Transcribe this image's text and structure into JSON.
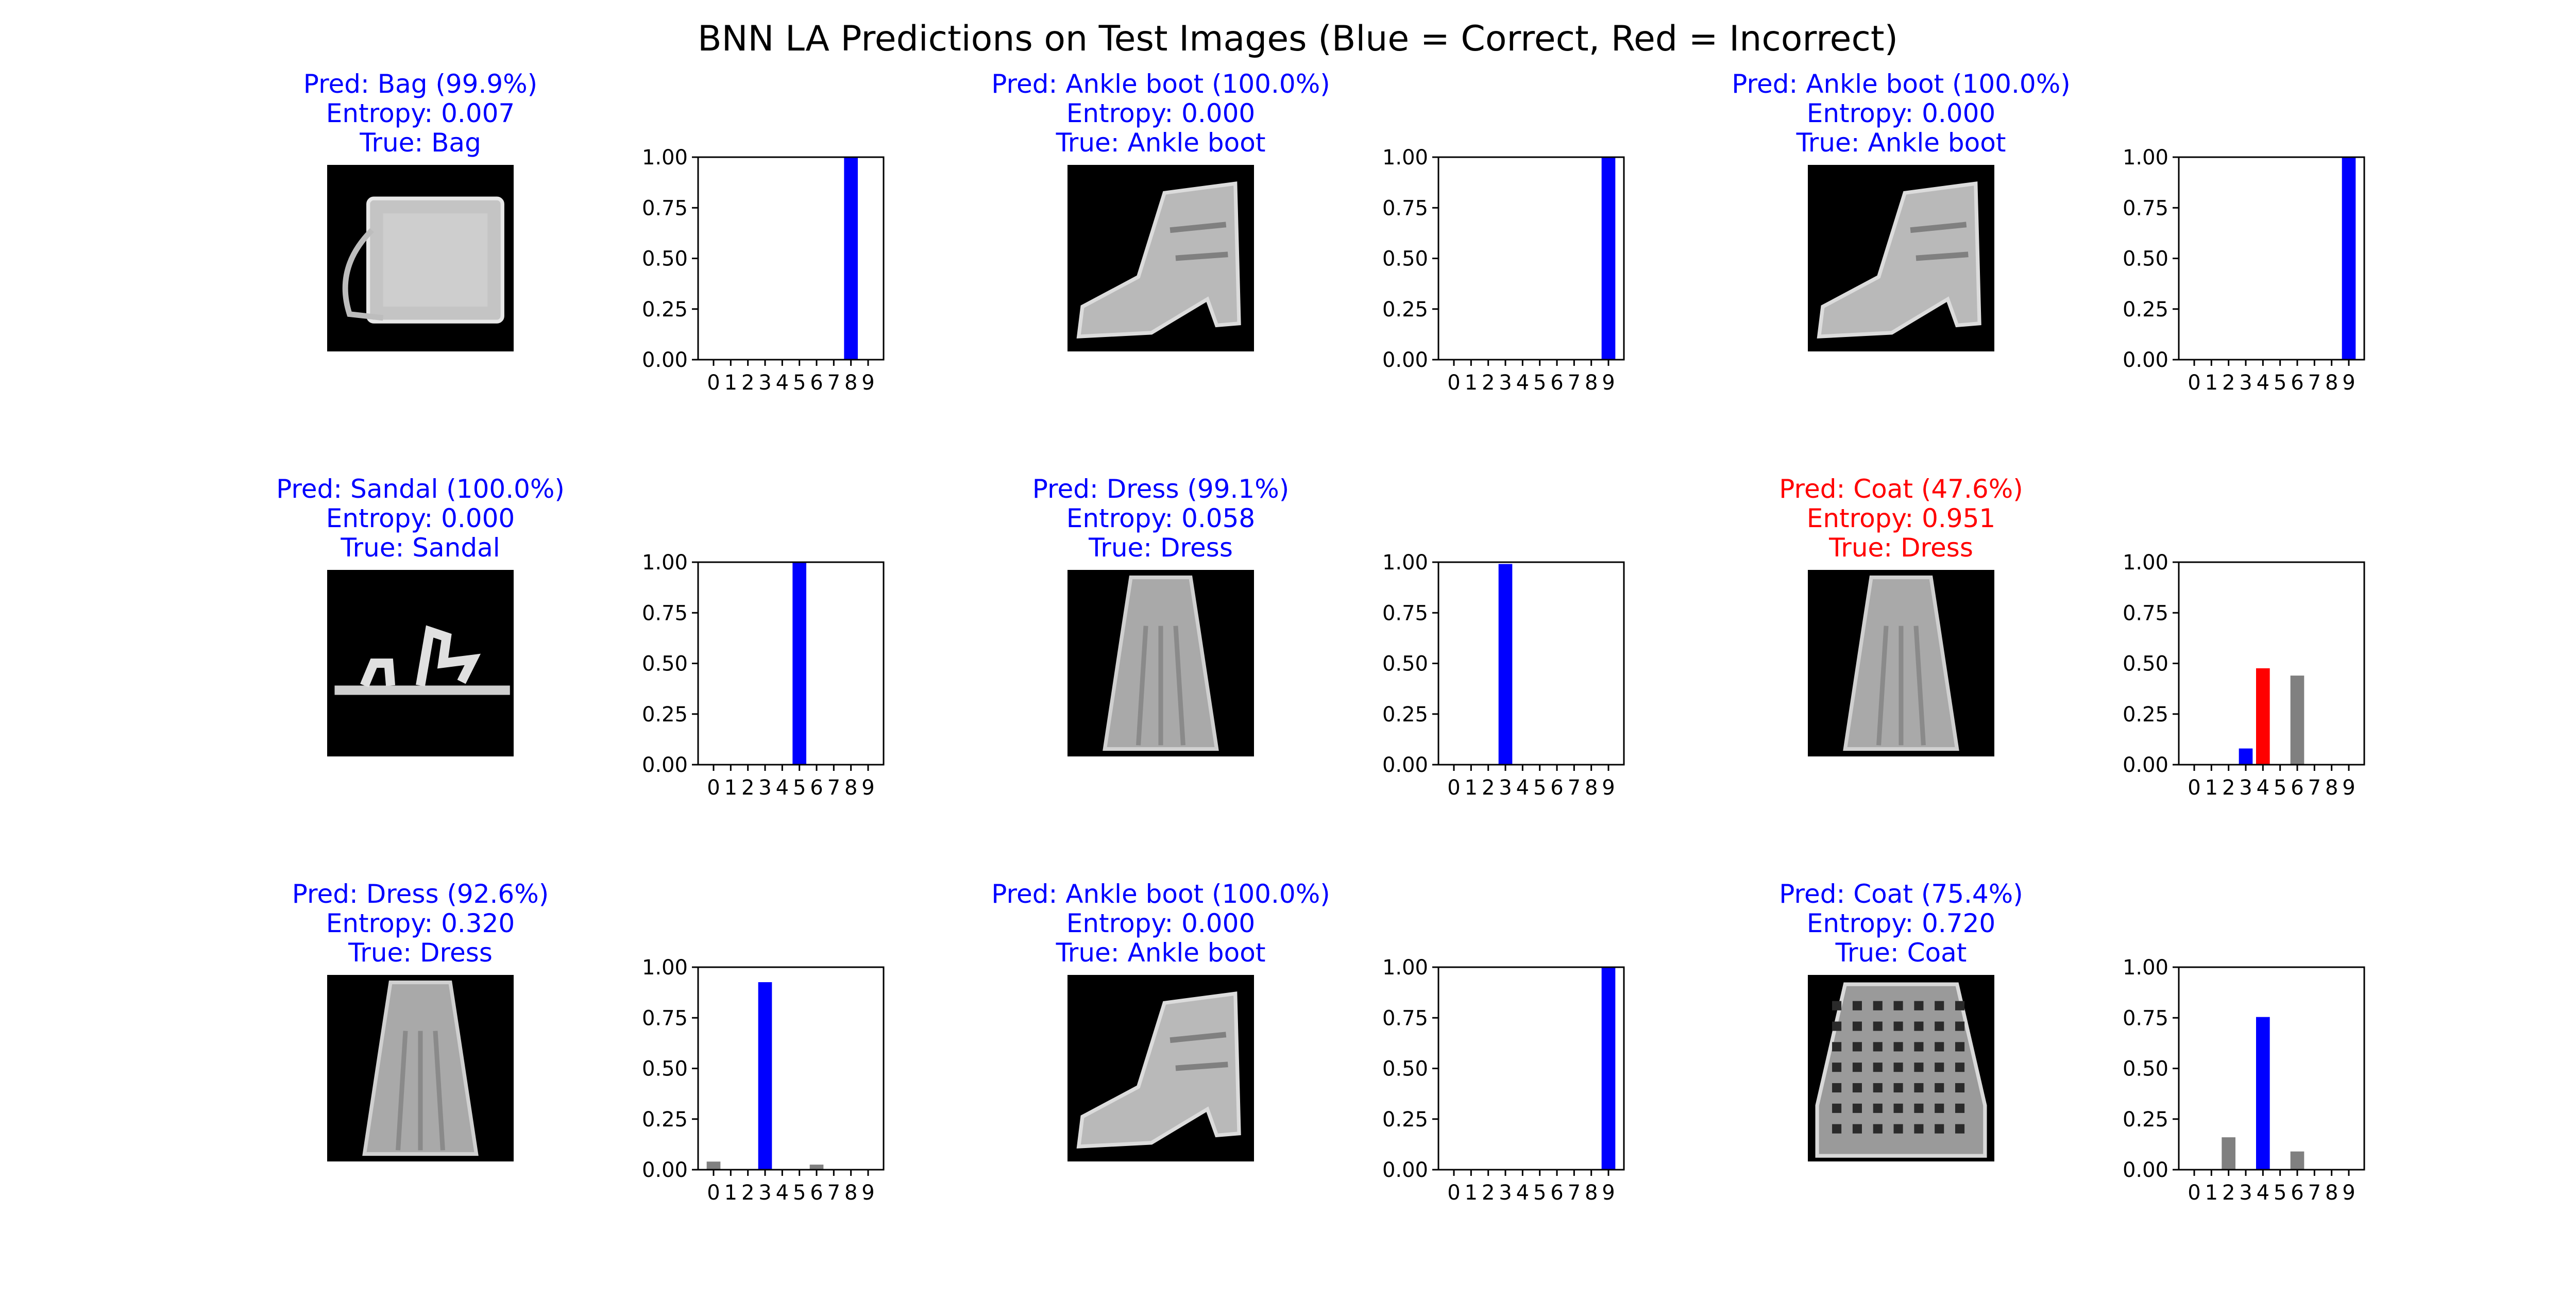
{
  "figure": {
    "suptitle": "BNN LA Predictions on Test Images (Blue = Correct, Red = Incorrect)"
  },
  "colors": {
    "correct": "#0000ff",
    "incorrect": "#ff0000",
    "other": "#808080",
    "image_background": "#000000"
  },
  "panels": [
    {
      "pred": "Pred: Bag (99.9%)",
      "entropy": "Entropy: 0.007",
      "true_label": "True: Bag",
      "correct": true,
      "image_icon": "bag-thumbnail-icon"
    },
    {
      "pred": "Pred: Ankle boot (100.0%)",
      "entropy": "Entropy: 0.000",
      "true_label": "True: Ankle boot",
      "correct": true,
      "image_icon": "ankle-boot-thumbnail-icon"
    },
    {
      "pred": "Pred: Ankle boot (100.0%)",
      "entropy": "Entropy: 0.000",
      "true_label": "True: Ankle boot",
      "correct": true,
      "image_icon": "ankle-boot-thumbnail-icon"
    },
    {
      "pred": "Pred: Sandal (100.0%)",
      "entropy": "Entropy: 0.000",
      "true_label": "True: Sandal",
      "correct": true,
      "image_icon": "sandal-thumbnail-icon"
    },
    {
      "pred": "Pred: Dress (99.1%)",
      "entropy": "Entropy: 0.058",
      "true_label": "True: Dress",
      "correct": true,
      "image_icon": "dress-thumbnail-icon"
    },
    {
      "pred": "Pred: Coat (47.6%)",
      "entropy": "Entropy: 0.951",
      "true_label": "True: Dress",
      "correct": false,
      "image_icon": "dress-thumbnail-icon"
    },
    {
      "pred": "Pred: Dress (92.6%)",
      "entropy": "Entropy: 0.320",
      "true_label": "True: Dress",
      "correct": true,
      "image_icon": "dress-thumbnail-icon"
    },
    {
      "pred": "Pred: Ankle boot (100.0%)",
      "entropy": "Entropy: 0.000",
      "true_label": "True: Ankle boot",
      "correct": true,
      "image_icon": "ankle-boot-thumbnail-icon"
    },
    {
      "pred": "Pred: Coat (75.4%)",
      "entropy": "Entropy: 0.720",
      "true_label": "True: Coat",
      "correct": true,
      "image_icon": "coat-thumbnail-icon"
    }
  ],
  "chart_data": [
    {
      "type": "bar",
      "categories": [
        "0",
        "1",
        "2",
        "3",
        "4",
        "5",
        "6",
        "7",
        "8",
        "9"
      ],
      "values": [
        0,
        0,
        0,
        0,
        0,
        0,
        0,
        0,
        0.999,
        0
      ],
      "bar_colors": [
        "#808080",
        "#808080",
        "#808080",
        "#808080",
        "#808080",
        "#808080",
        "#808080",
        "#808080",
        "#0000ff",
        "#808080"
      ],
      "ylim": [
        0,
        1
      ],
      "yticks": [
        "0.00",
        "0.25",
        "0.50",
        "0.75",
        "1.00"
      ]
    },
    {
      "type": "bar",
      "categories": [
        "0",
        "1",
        "2",
        "3",
        "4",
        "5",
        "6",
        "7",
        "8",
        "9"
      ],
      "values": [
        0,
        0,
        0,
        0,
        0,
        0,
        0,
        0,
        0,
        1.0
      ],
      "bar_colors": [
        "#808080",
        "#808080",
        "#808080",
        "#808080",
        "#808080",
        "#808080",
        "#808080",
        "#808080",
        "#808080",
        "#0000ff"
      ],
      "ylim": [
        0,
        1
      ],
      "yticks": [
        "0.00",
        "0.25",
        "0.50",
        "0.75",
        "1.00"
      ]
    },
    {
      "type": "bar",
      "categories": [
        "0",
        "1",
        "2",
        "3",
        "4",
        "5",
        "6",
        "7",
        "8",
        "9"
      ],
      "values": [
        0,
        0,
        0,
        0,
        0,
        0,
        0,
        0,
        0,
        1.0
      ],
      "bar_colors": [
        "#808080",
        "#808080",
        "#808080",
        "#808080",
        "#808080",
        "#808080",
        "#808080",
        "#808080",
        "#808080",
        "#0000ff"
      ],
      "ylim": [
        0,
        1
      ],
      "yticks": [
        "0.00",
        "0.25",
        "0.50",
        "0.75",
        "1.00"
      ]
    },
    {
      "type": "bar",
      "categories": [
        "0",
        "1",
        "2",
        "3",
        "4",
        "5",
        "6",
        "7",
        "8",
        "9"
      ],
      "values": [
        0,
        0,
        0,
        0,
        0,
        1.0,
        0,
        0,
        0,
        0
      ],
      "bar_colors": [
        "#808080",
        "#808080",
        "#808080",
        "#808080",
        "#808080",
        "#0000ff",
        "#808080",
        "#808080",
        "#808080",
        "#808080"
      ],
      "ylim": [
        0,
        1
      ],
      "yticks": [
        "0.00",
        "0.25",
        "0.50",
        "0.75",
        "1.00"
      ]
    },
    {
      "type": "bar",
      "categories": [
        "0",
        "1",
        "2",
        "3",
        "4",
        "5",
        "6",
        "7",
        "8",
        "9"
      ],
      "values": [
        0,
        0,
        0,
        0.991,
        0,
        0,
        0,
        0,
        0,
        0
      ],
      "bar_colors": [
        "#808080",
        "#808080",
        "#808080",
        "#0000ff",
        "#808080",
        "#808080",
        "#808080",
        "#808080",
        "#808080",
        "#808080"
      ],
      "ylim": [
        0,
        1
      ],
      "yticks": [
        "0.00",
        "0.25",
        "0.50",
        "0.75",
        "1.00"
      ]
    },
    {
      "type": "bar",
      "categories": [
        "0",
        "1",
        "2",
        "3",
        "4",
        "5",
        "6",
        "7",
        "8",
        "9"
      ],
      "values": [
        0,
        0,
        0,
        0.08,
        0.476,
        0,
        0.44,
        0,
        0,
        0
      ],
      "bar_colors": [
        "#808080",
        "#808080",
        "#808080",
        "#0000ff",
        "#ff0000",
        "#808080",
        "#808080",
        "#808080",
        "#808080",
        "#808080"
      ],
      "ylim": [
        0,
        1
      ],
      "yticks": [
        "0.00",
        "0.25",
        "0.50",
        "0.75",
        "1.00"
      ]
    },
    {
      "type": "bar",
      "categories": [
        "0",
        "1",
        "2",
        "3",
        "4",
        "5",
        "6",
        "7",
        "8",
        "9"
      ],
      "values": [
        0.04,
        0,
        0,
        0.926,
        0,
        0,
        0.025,
        0,
        0,
        0
      ],
      "bar_colors": [
        "#808080",
        "#808080",
        "#808080",
        "#0000ff",
        "#808080",
        "#808080",
        "#808080",
        "#808080",
        "#808080",
        "#808080"
      ],
      "ylim": [
        0,
        1
      ],
      "yticks": [
        "0.00",
        "0.25",
        "0.50",
        "0.75",
        "1.00"
      ]
    },
    {
      "type": "bar",
      "categories": [
        "0",
        "1",
        "2",
        "3",
        "4",
        "5",
        "6",
        "7",
        "8",
        "9"
      ],
      "values": [
        0,
        0,
        0,
        0,
        0,
        0,
        0,
        0,
        0,
        1.0
      ],
      "bar_colors": [
        "#808080",
        "#808080",
        "#808080",
        "#808080",
        "#808080",
        "#808080",
        "#808080",
        "#808080",
        "#808080",
        "#0000ff"
      ],
      "ylim": [
        0,
        1
      ],
      "yticks": [
        "0.00",
        "0.25",
        "0.50",
        "0.75",
        "1.00"
      ]
    },
    {
      "type": "bar",
      "categories": [
        "0",
        "1",
        "2",
        "3",
        "4",
        "5",
        "6",
        "7",
        "8",
        "9"
      ],
      "values": [
        0,
        0,
        0.16,
        0,
        0.754,
        0,
        0.09,
        0,
        0,
        0
      ],
      "bar_colors": [
        "#808080",
        "#808080",
        "#808080",
        "#808080",
        "#0000ff",
        "#808080",
        "#808080",
        "#808080",
        "#808080",
        "#808080"
      ],
      "ylim": [
        0,
        1
      ],
      "yticks": [
        "0.00",
        "0.25",
        "0.50",
        "0.75",
        "1.00"
      ]
    }
  ]
}
